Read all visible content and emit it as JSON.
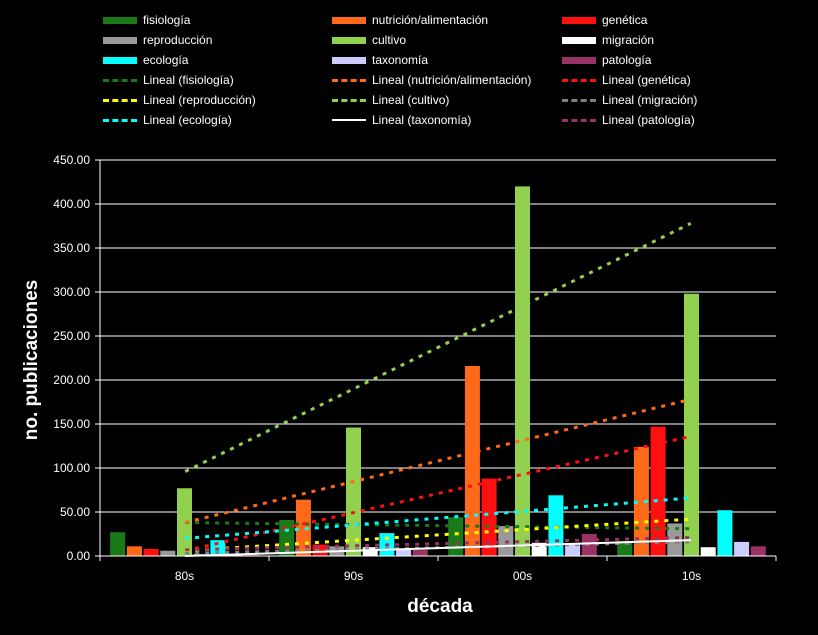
{
  "chart_data": {
    "type": "bar",
    "xlabel": "década",
    "ylabel": "no. publicaciones",
    "categories": [
      "80s",
      "90s",
      "00s",
      "10s"
    ],
    "ylim": [
      0,
      450
    ],
    "yticks": [
      "0.00",
      "50.00",
      "100.00",
      "150.00",
      "200.00",
      "250.00",
      "300.00",
      "350.00",
      "400.00",
      "450.00"
    ],
    "grid": true,
    "legend_position": "top",
    "series": [
      {
        "name": "fisiología",
        "color": "#1a7a1a",
        "values": [
          27,
          41,
          44,
          17
        ]
      },
      {
        "name": "nutrición/alimentación",
        "color": "#ff6a1a",
        "values": [
          11,
          64,
          216,
          124
        ]
      },
      {
        "name": "genética",
        "color": "#ff1010",
        "values": [
          8,
          13,
          88,
          147
        ]
      },
      {
        "name": "reproducción",
        "color": "#9a9a9a",
        "values": [
          6,
          11,
          34,
          37
        ]
      },
      {
        "name": "cultivo",
        "color": "#92d050",
        "values": [
          77,
          146,
          420,
          298
        ]
      },
      {
        "name": "migración",
        "color": "#ffffff",
        "values": [
          2,
          10,
          15,
          10
        ]
      },
      {
        "name": "ecología",
        "color": "#00ffff",
        "values": [
          18,
          26,
          69,
          52
        ]
      },
      {
        "name": "taxonomía",
        "color": "#ccccff",
        "values": [
          1,
          8,
          13,
          16
        ]
      },
      {
        "name": "patología",
        "color": "#993366",
        "values": [
          1,
          7,
          25,
          11
        ]
      }
    ],
    "trendlines": [
      {
        "name": "Lineal (fisiología)",
        "color": "#1a7a1a",
        "style": "dashed",
        "start": 38,
        "end": 31
      },
      {
        "name": "Lineal (nutrición/alimentación)",
        "color": "#ff6a1a",
        "style": "dashed",
        "start": 38,
        "end": 178
      },
      {
        "name": "Lineal (genética)",
        "color": "#ff1010",
        "style": "dashed",
        "start": 6,
        "end": 136
      },
      {
        "name": "Lineal (reproducción)",
        "color": "#ffff00",
        "style": "dashed",
        "start": 6,
        "end": 42
      },
      {
        "name": "Lineal (cultivo)",
        "color": "#92d050",
        "style": "dashed",
        "start": 96,
        "end": 378
      },
      {
        "name": "Lineal (migración)",
        "color": "#808080",
        "style": "dashed",
        "start": 3,
        "end": 16
      },
      {
        "name": "Lineal (ecología)",
        "color": "#00ffff",
        "style": "dashed",
        "start": 20,
        "end": 66
      },
      {
        "name": "Lineal (taxonomía)",
        "color": "#ffffff",
        "style": "solid",
        "start": 0,
        "end": 18
      },
      {
        "name": "Lineal (patología)",
        "color": "#993366",
        "style": "dashed",
        "start": 7,
        "end": 21
      }
    ]
  }
}
